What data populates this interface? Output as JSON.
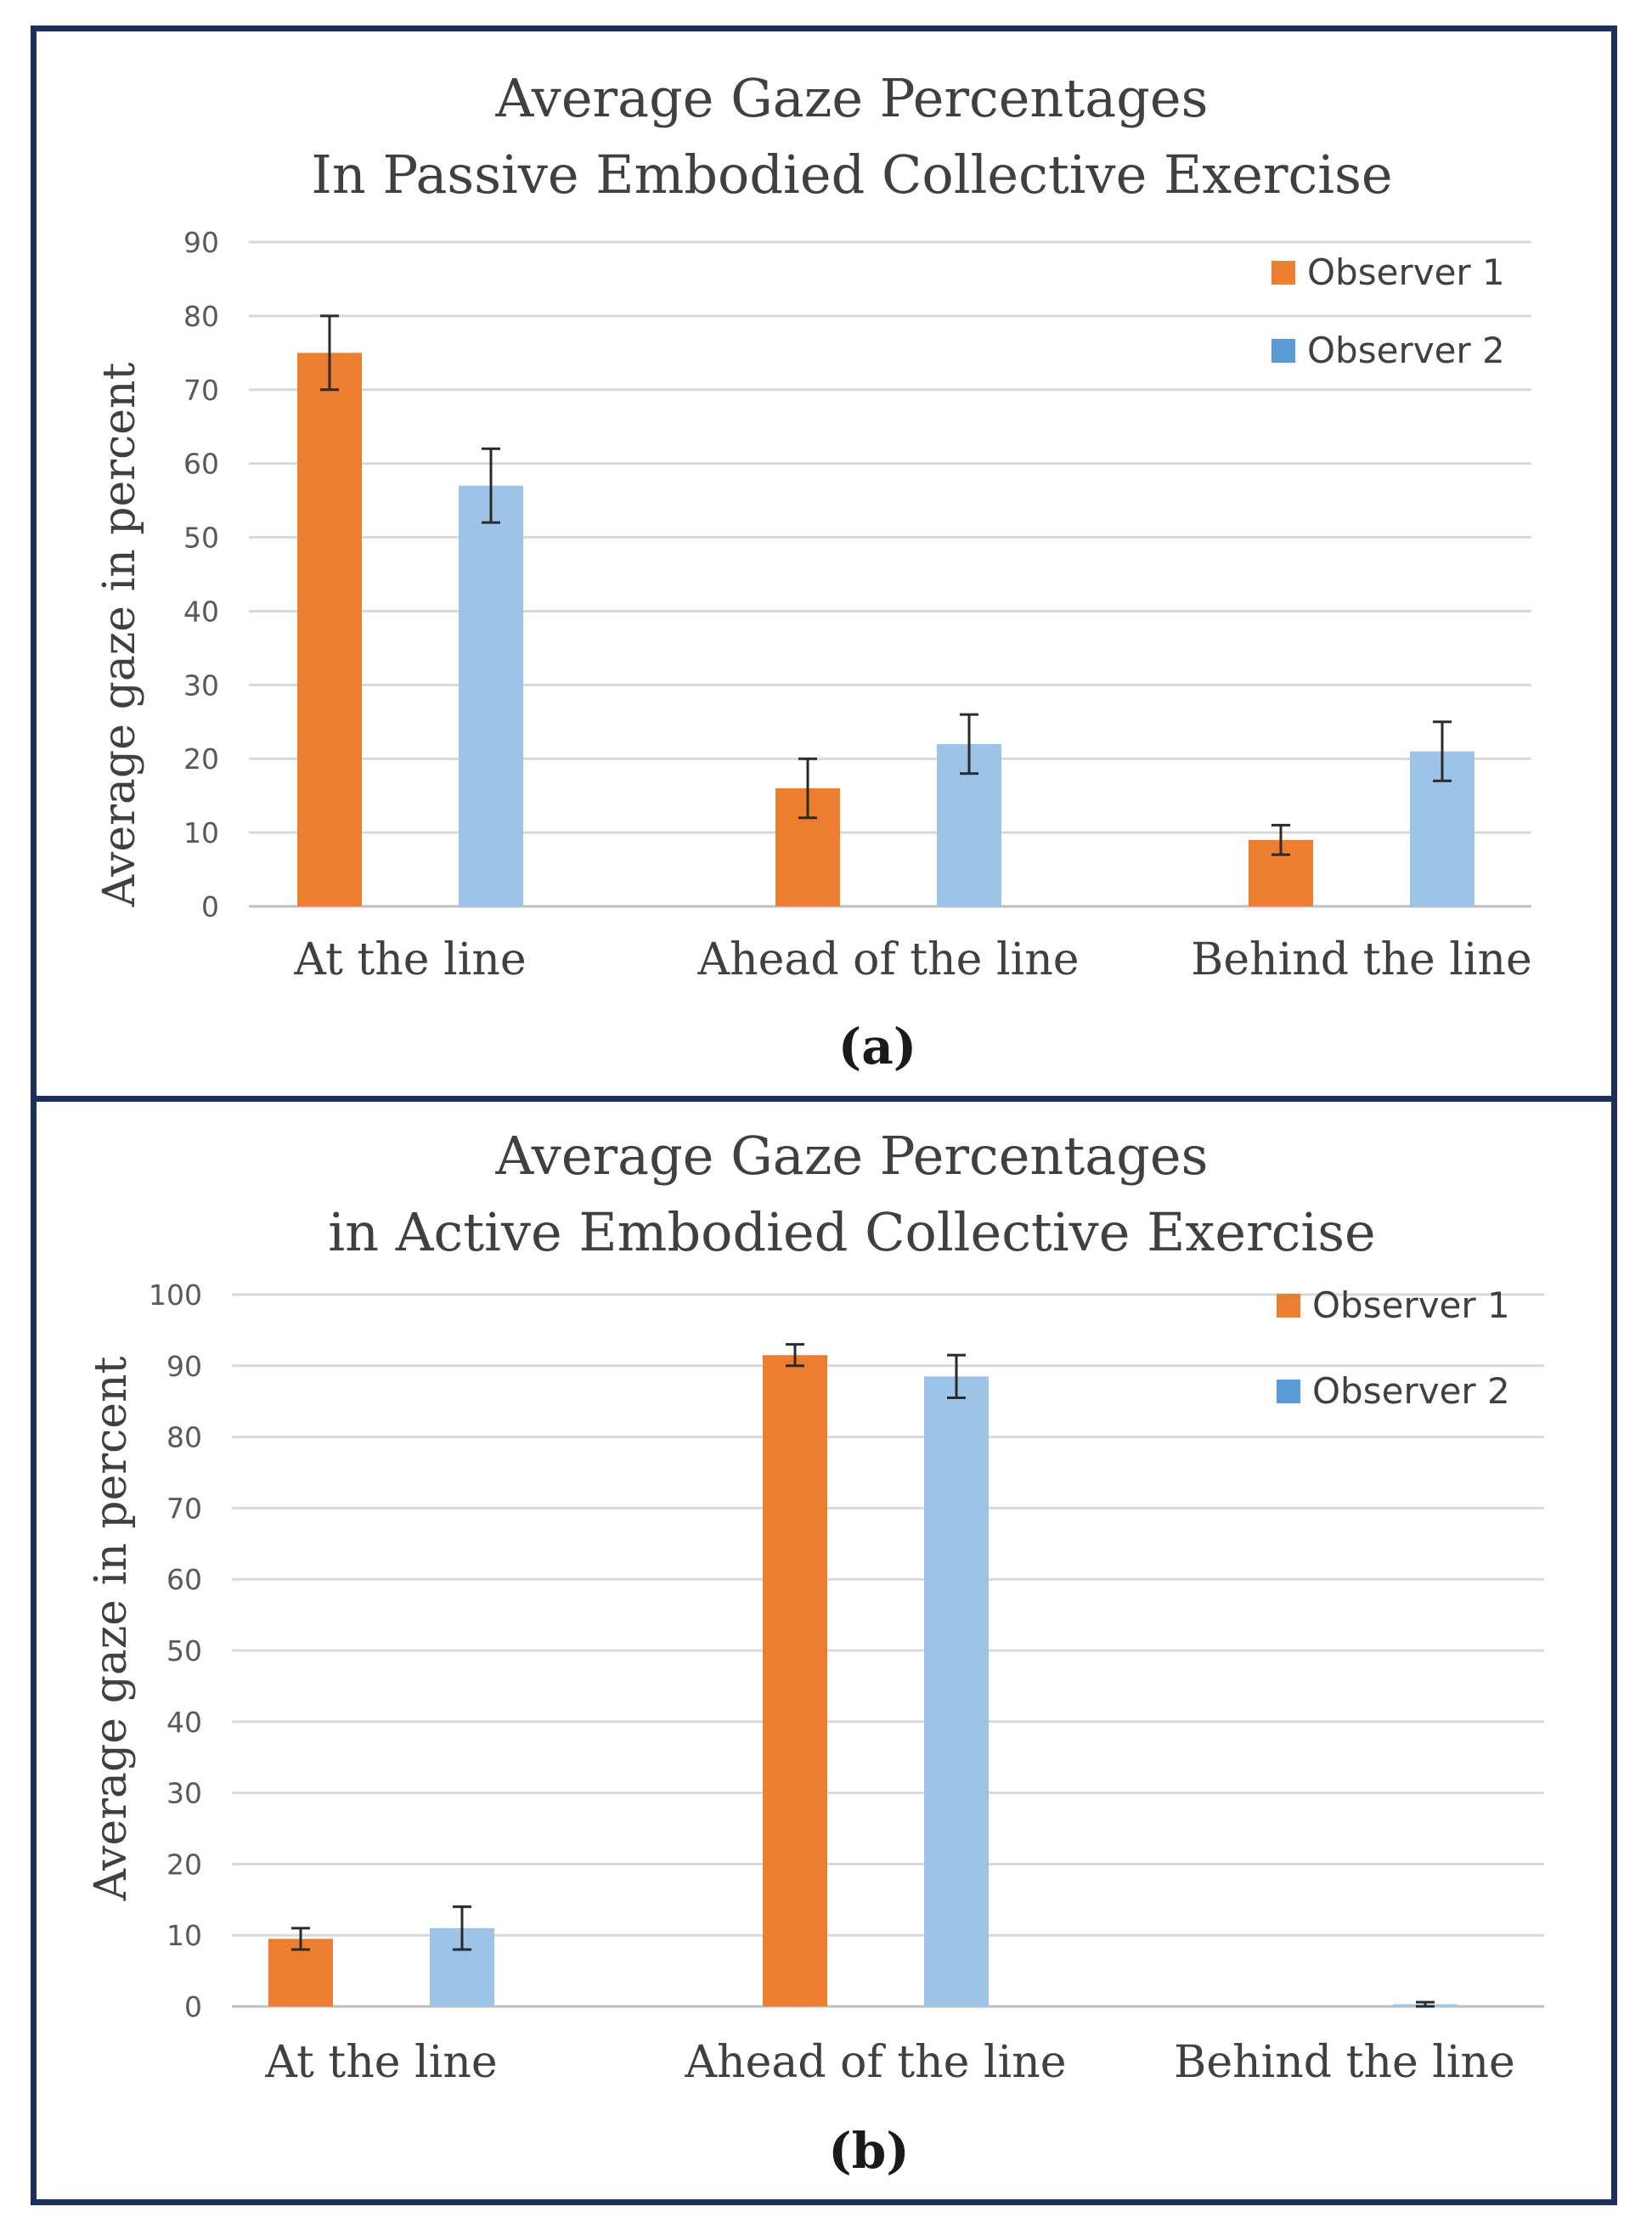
{
  "chart_data": [
    {
      "type": "bar",
      "title": [
        "Average Gaze Percentages",
        "In Passive Embodied Collective Exercise"
      ],
      "ylabel": "Average gaze in percent",
      "xlabel": "",
      "categories": [
        "At the line",
        "Ahead of the line",
        "Behind the line"
      ],
      "series": [
        {
          "name": "Observer 1",
          "color": "#ed7d31",
          "values": [
            75,
            16,
            9
          ],
          "errors": [
            5,
            4,
            2
          ]
        },
        {
          "name": "Observer 2",
          "color": "#9dc3e6",
          "values": [
            57,
            22,
            21
          ],
          "errors": [
            5,
            4,
            4
          ]
        }
      ],
      "ylim": [
        0,
        90
      ],
      "yticks": [
        0,
        10,
        20,
        30,
        40,
        50,
        60,
        70,
        80,
        90
      ],
      "grid": true,
      "legend": "top-right",
      "legend_colors": [
        "#ed7d31",
        "#5b9bd5"
      ],
      "caption": "(a)"
    },
    {
      "type": "bar",
      "title": [
        "Average Gaze Percentages",
        "in Active Embodied Collective Exercise"
      ],
      "ylabel": "Average gaze in percent",
      "xlabel": "",
      "categories": [
        "At the line",
        "Ahead of the line",
        "Behind the line"
      ],
      "series": [
        {
          "name": "Observer 1",
          "color": "#ed7d31",
          "values": [
            9.5,
            91.5,
            0
          ],
          "errors": [
            1.5,
            1.5,
            0
          ]
        },
        {
          "name": "Observer 2",
          "color": "#9dc3e6",
          "values": [
            11,
            88.5,
            0.3
          ],
          "errors": [
            3,
            3,
            0.3
          ]
        }
      ],
      "ylim": [
        0,
        100
      ],
      "yticks": [
        0,
        10,
        20,
        30,
        40,
        50,
        60,
        70,
        80,
        90,
        100
      ],
      "grid": true,
      "legend": "top-right",
      "legend_colors": [
        "#ed7d31",
        "#5b9bd5"
      ],
      "caption": "(b)"
    }
  ]
}
